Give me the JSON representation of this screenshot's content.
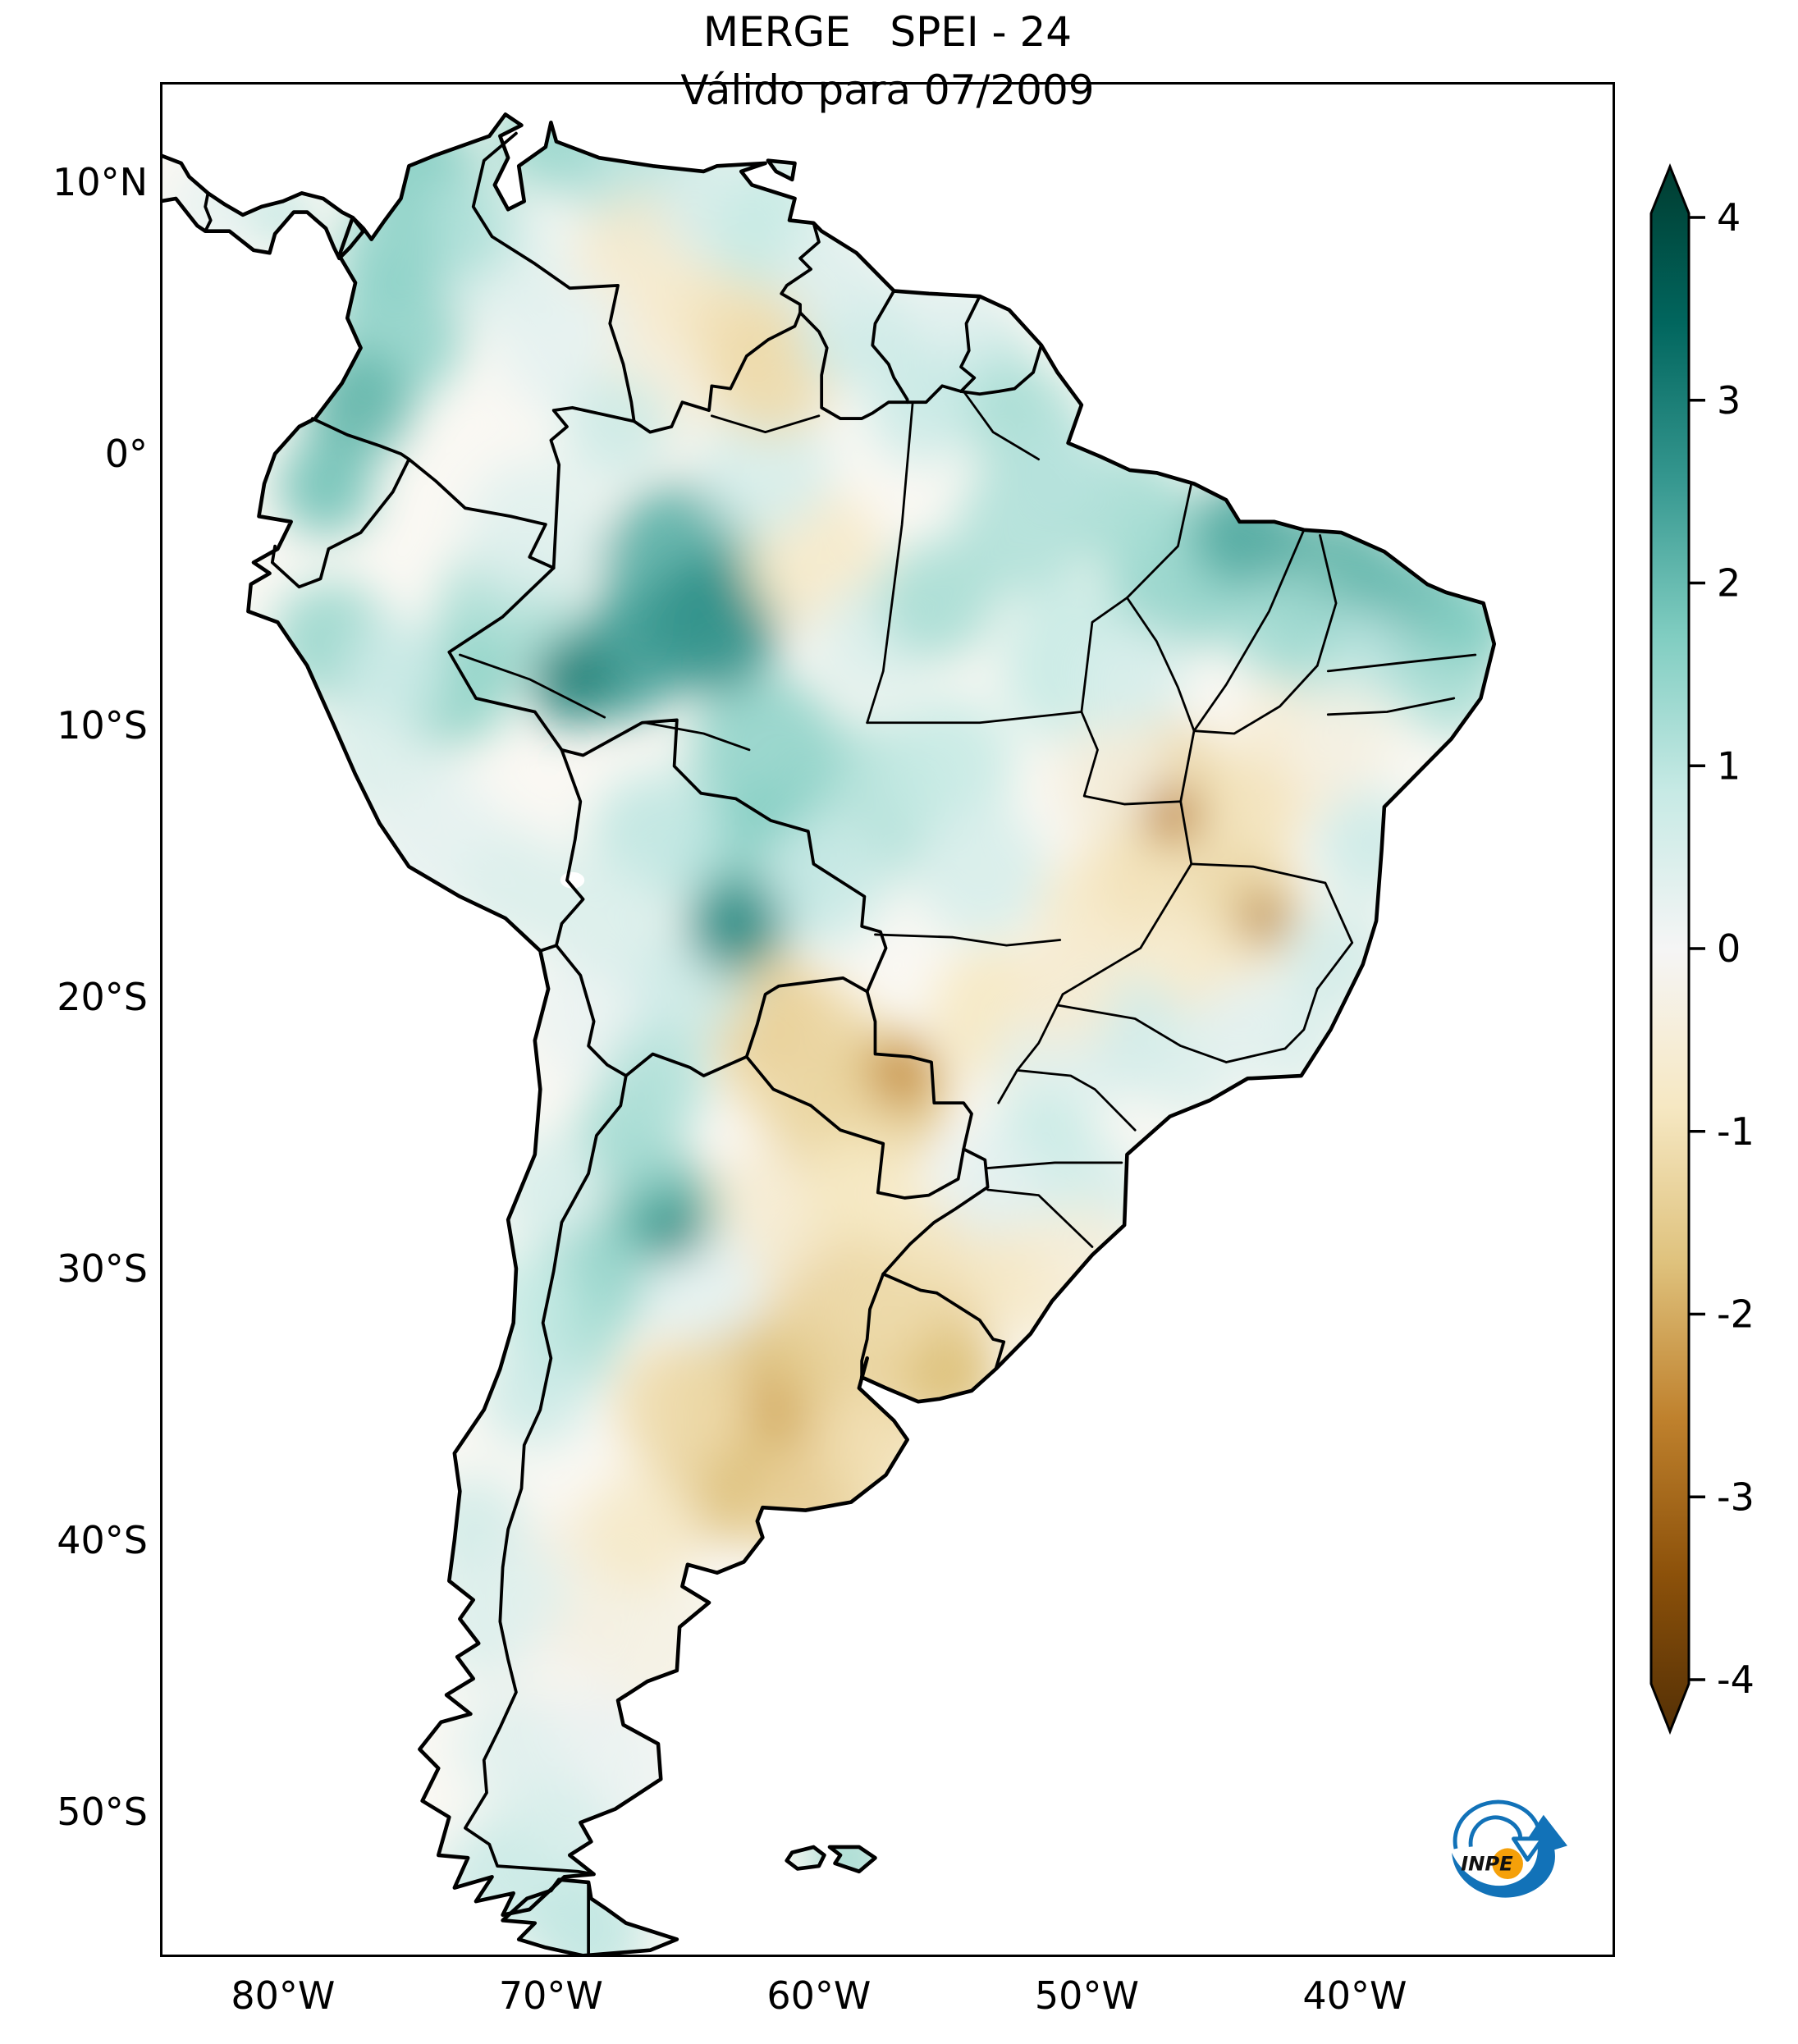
{
  "title": {
    "line1": "MERGE   SPEI - 24",
    "line2": "Válido para 07/2009"
  },
  "axes": {
    "lat_ticks": [
      {
        "label": "10°N",
        "deg": 10
      },
      {
        "label": "0°",
        "deg": 0
      },
      {
        "label": "10°S",
        "deg": -10
      },
      {
        "label": "20°S",
        "deg": -20
      },
      {
        "label": "30°S",
        "deg": -30
      },
      {
        "label": "40°S",
        "deg": -40
      },
      {
        "label": "50°S",
        "deg": -50
      }
    ],
    "lon_ticks": [
      {
        "label": "80°W",
        "deg": -80
      },
      {
        "label": "70°W",
        "deg": -70
      },
      {
        "label": "60°W",
        "deg": -60
      },
      {
        "label": "50°W",
        "deg": -50
      },
      {
        "label": "40°W",
        "deg": -40
      }
    ]
  },
  "map_extent": {
    "lon_min": -84.59,
    "lon_max": -30.29,
    "lat_min": -55.35,
    "lat_max": 13.69
  },
  "colorbar": {
    "ticks": [
      {
        "label": "4",
        "value": 4
      },
      {
        "label": "3",
        "value": 3
      },
      {
        "label": "2",
        "value": 2
      },
      {
        "label": "1",
        "value": 1
      },
      {
        "label": "0",
        "value": 0
      },
      {
        "label": "-1",
        "value": -1
      },
      {
        "label": "-2",
        "value": -2
      },
      {
        "label": "-3",
        "value": -3
      },
      {
        "label": "-4",
        "value": -4
      }
    ],
    "colors": [
      "#543005",
      "#8c510a",
      "#bf812d",
      "#dfc27d",
      "#f6e8c3",
      "#f5f5f5",
      "#c7eae5",
      "#80cdc1",
      "#35978f",
      "#01665e",
      "#003c30"
    ],
    "vmin": -4.45,
    "vmax": 4.45,
    "extend": "both"
  },
  "logo": {
    "text": "INPE",
    "blue": "#1272b8",
    "orange": "#f5a00a"
  },
  "chart_data": {
    "type": "heatmap",
    "title": "MERGE   SPEI - 24",
    "valid_for": "07/2009",
    "region": "South America",
    "colormap": "BrBG",
    "colorbar_range": [
      -4,
      4
    ],
    "colorbar_extend": "both",
    "x_tick_labels": [
      "80°W",
      "70°W",
      "60°W",
      "50°W",
      "40°W"
    ],
    "y_tick_labels": [
      "10°N",
      "0°",
      "10°S",
      "20°S",
      "30°S",
      "40°S",
      "50°S"
    ],
    "field_blobs_lon_lat_radius_value": [
      [
        -74.8,
        10.3,
        2.2,
        1.8
      ],
      [
        -73.3,
        8.3,
        2.0,
        1.2
      ],
      [
        -76.0,
        7.3,
        2.0,
        1.6
      ],
      [
        -75.8,
        4.5,
        2.6,
        1.6
      ],
      [
        -77.2,
        1.8,
        2.0,
        2.2
      ],
      [
        -78.4,
        -1.2,
        1.8,
        2.0
      ],
      [
        -70.1,
        11.6,
        2.0,
        1.5
      ],
      [
        -66.5,
        10.2,
        2.8,
        1.1
      ],
      [
        -63.4,
        9.2,
        2.5,
        0.5
      ],
      [
        -61.8,
        8.2,
        2.2,
        0.9
      ],
      [
        -71.8,
        7.0,
        2.4,
        0.4
      ],
      [
        -66.5,
        7.0,
        2.6,
        -0.7
      ],
      [
        -63.0,
        5.3,
        3.0,
        -1.1
      ],
      [
        -61.8,
        3.0,
        2.4,
        -1.2
      ],
      [
        -66.2,
        2.4,
        2.2,
        -0.5
      ],
      [
        -69.5,
        4.0,
        2.5,
        0.3
      ],
      [
        -58.6,
        4.6,
        2.2,
        0.8
      ],
      [
        -54.6,
        3.2,
        2.5,
        1.0
      ],
      [
        -52.4,
        1.2,
        2.1,
        1.3
      ],
      [
        -56.2,
        1.6,
        2.0,
        0.8
      ],
      [
        -59.5,
        6.8,
        2.0,
        0.4
      ],
      [
        -55.0,
        5.3,
        1.8,
        0.3
      ],
      [
        -65.0,
        -4.3,
        3.2,
        2.3
      ],
      [
        -64.0,
        -6.3,
        2.6,
        2.8
      ],
      [
        -67.3,
        -7.6,
        2.2,
        2.6
      ],
      [
        -69.2,
        -8.4,
        1.6,
        3.1
      ],
      [
        -71.6,
        -5.8,
        2.6,
        1.3
      ],
      [
        -73.6,
        -8.6,
        2.1,
        1.7
      ],
      [
        -70.6,
        -2.8,
        2.6,
        0.4
      ],
      [
        -60.2,
        -3.8,
        2.6,
        -0.8
      ],
      [
        -57.9,
        -6.9,
        2.2,
        0.5
      ],
      [
        -55.6,
        -5.4,
        2.2,
        1.3
      ],
      [
        -52.4,
        -2.8,
        2.5,
        1.2
      ],
      [
        -51.0,
        -0.6,
        2.0,
        1.1
      ],
      [
        -62.0,
        -0.5,
        2.5,
        0.6
      ],
      [
        -67.5,
        1.0,
        2.0,
        0.8
      ],
      [
        -48.5,
        -2.0,
        2.3,
        1.3
      ],
      [
        -46.4,
        -4.4,
        2.8,
        1.6
      ],
      [
        -44.1,
        -2.9,
        2.0,
        2.4
      ],
      [
        -40.8,
        -4.4,
        2.5,
        2.2
      ],
      [
        -38.0,
        -5.9,
        2.5,
        2.1
      ],
      [
        -36.4,
        -8.4,
        2.0,
        1.3
      ],
      [
        -40.1,
        -7.9,
        2.2,
        1.0
      ],
      [
        -42.6,
        -6.4,
        2.0,
        1.4
      ],
      [
        -35.6,
        -6.2,
        1.6,
        1.8
      ],
      [
        -42.1,
        -10.9,
        2.5,
        -0.6
      ],
      [
        -44.4,
        -13.4,
        2.3,
        -1.0
      ],
      [
        -40.4,
        -10.5,
        2.0,
        -0.3
      ],
      [
        -47.4,
        -12.6,
        2.8,
        -1.4
      ],
      [
        -46.8,
        -13.3,
        1.1,
        -2.8
      ],
      [
        -44.1,
        -16.7,
        2.2,
        -1.3
      ],
      [
        -43.4,
        -17.1,
        0.9,
        -2.9
      ],
      [
        -49.4,
        -17.0,
        2.5,
        -0.8
      ],
      [
        -45.4,
        -19.4,
        2.2,
        -0.8
      ],
      [
        -47.8,
        -15.5,
        2.0,
        -1.0
      ],
      [
        -50.2,
        -7.8,
        3.0,
        0.9
      ],
      [
        -48.2,
        -8.2,
        2.0,
        0.5
      ],
      [
        -49.0,
        -12.0,
        2.3,
        -0.4
      ],
      [
        -62.0,
        -10.9,
        2.8,
        1.6
      ],
      [
        -58.2,
        -12.9,
        3.0,
        1.2
      ],
      [
        -55.2,
        -11.4,
        2.5,
        0.9
      ],
      [
        -54.0,
        -15.4,
        2.5,
        0.6
      ],
      [
        -59.8,
        -15.8,
        2.4,
        0.8
      ],
      [
        -63.1,
        -17.4,
        1.8,
        2.9
      ],
      [
        -62.2,
        -15.2,
        2.8,
        1.8
      ],
      [
        -66.0,
        -14.2,
        2.5,
        1.0
      ],
      [
        -68.1,
        -17.1,
        2.2,
        0.5
      ],
      [
        -64.9,
        -19.6,
        2.2,
        0.8
      ],
      [
        -68.4,
        -20.6,
        2.5,
        0.2
      ],
      [
        -78.2,
        -6.9,
        2.2,
        1.5
      ],
      [
        -76.2,
        -11.0,
        2.6,
        0.5
      ],
      [
        -74.2,
        -14.2,
        2.5,
        0.3
      ],
      [
        -71.2,
        -16.0,
        2.2,
        0.5
      ],
      [
        -75.8,
        -8.0,
        2.0,
        0.8
      ],
      [
        -48.6,
        -21.4,
        2.2,
        0.8
      ],
      [
        -51.2,
        -22.6,
        2.2,
        0.4
      ],
      [
        -46.2,
        -22.4,
        2.0,
        0.5
      ],
      [
        -42.6,
        -21.4,
        2.0,
        0.6
      ],
      [
        -40.6,
        -18.6,
        2.0,
        0.7
      ],
      [
        -39.4,
        -14.4,
        2.0,
        0.8
      ],
      [
        -44.0,
        -21.0,
        1.8,
        0.3
      ],
      [
        -53.2,
        -20.6,
        2.6,
        -0.9
      ],
      [
        -50.8,
        -19.8,
        2.0,
        -0.6
      ],
      [
        -60.6,
        -22.2,
        3.0,
        -1.2
      ],
      [
        -57.6,
        -23.6,
        2.5,
        -1.6
      ],
      [
        -56.9,
        -22.8,
        1.2,
        -2.6
      ],
      [
        -59.6,
        -24.6,
        2.2,
        -1.3
      ],
      [
        -62.0,
        -20.6,
        2.4,
        -1.4
      ],
      [
        -51.6,
        -25.8,
        2.2,
        0.9
      ],
      [
        -49.6,
        -27.4,
        2.0,
        0.6
      ],
      [
        -53.6,
        -26.9,
        2.0,
        0.3
      ],
      [
        -54.6,
        -29.6,
        2.5,
        -1.0
      ],
      [
        -52.1,
        -30.4,
        2.2,
        -0.8
      ],
      [
        -50.1,
        -29.4,
        1.8,
        -0.5
      ],
      [
        -56.1,
        -32.9,
        2.5,
        -1.4
      ],
      [
        -55.1,
        -34.0,
        1.8,
        -1.8
      ],
      [
        -57.4,
        -31.6,
        2.0,
        -1.2
      ],
      [
        -59.6,
        -30.0,
        2.5,
        -1.4
      ],
      [
        -58.4,
        -27.1,
        2.2,
        -0.9
      ],
      [
        -62.1,
        -28.1,
        2.5,
        -0.6
      ],
      [
        -62.6,
        -34.6,
        3.0,
        -1.8
      ],
      [
        -61.1,
        -36.6,
        2.8,
        -2.2
      ],
      [
        -63.6,
        -37.6,
        2.5,
        -1.8
      ],
      [
        -59.1,
        -34.1,
        2.2,
        -1.5
      ],
      [
        -65.1,
        -35.1,
        2.5,
        -1.2
      ],
      [
        -60.1,
        -38.6,
        2.5,
        -1.4
      ],
      [
        -57.9,
        -36.4,
        2.2,
        -1.1
      ],
      [
        -65.8,
        -27.8,
        2.0,
        2.2
      ],
      [
        -65.4,
        -28.6,
        1.0,
        3.0
      ],
      [
        -67.1,
        -25.1,
        2.0,
        1.4
      ],
      [
        -66.1,
        -23.1,
        2.0,
        1.2
      ],
      [
        -68.1,
        -30.1,
        2.2,
        1.6
      ],
      [
        -69.4,
        -32.6,
        2.0,
        1.3
      ],
      [
        -70.6,
        -34.6,
        2.0,
        0.8
      ],
      [
        -70.9,
        -31.1,
        1.8,
        0.9
      ],
      [
        -70.1,
        -27.1,
        2.0,
        0.6
      ],
      [
        -64.4,
        -30.6,
        2.2,
        0.3
      ],
      [
        -66.6,
        -39.6,
        2.2,
        -0.8
      ],
      [
        -68.6,
        -41.6,
        2.8,
        -0.4
      ],
      [
        -66.1,
        -43.6,
        2.5,
        -0.3
      ],
      [
        -69.6,
        -45.1,
        3.0,
        -0.1
      ],
      [
        -68.1,
        -48.6,
        2.8,
        0.2
      ],
      [
        -70.1,
        -51.1,
        2.5,
        0.6
      ],
      [
        -72.1,
        -52.6,
        2.2,
        0.8
      ],
      [
        -68.6,
        -54.4,
        2.2,
        1.0
      ],
      [
        -71.6,
        -47.6,
        2.0,
        0.4
      ],
      [
        -72.6,
        -43.1,
        2.0,
        0.5
      ],
      [
        -72.9,
        -39.6,
        2.0,
        0.7
      ],
      [
        -71.1,
        -41.9,
        1.8,
        0.4
      ],
      [
        -58.9,
        -51.7,
        1.5,
        1.5
      ],
      [
        -61.3,
        10.4,
        0.9,
        0.8
      ],
      [
        -80.1,
        8.8,
        1.2,
        1.0
      ],
      [
        -82.6,
        9.2,
        1.5,
        0.3
      ]
    ]
  }
}
